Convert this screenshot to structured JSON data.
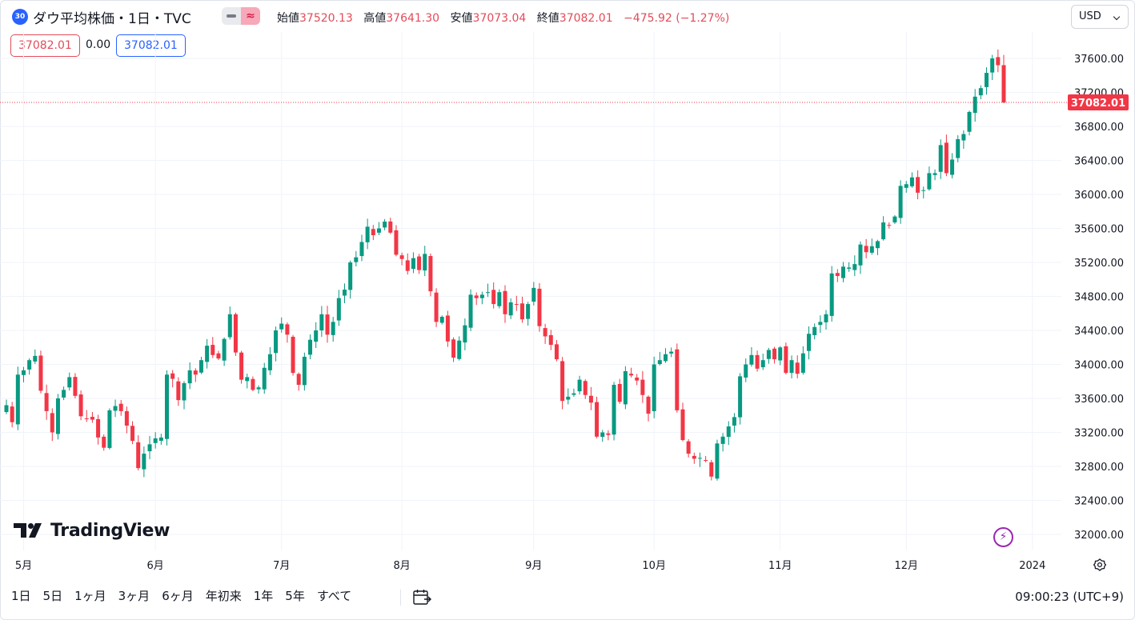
{
  "header": {
    "badge": "30",
    "title": "ダウ平均株価・1日・TVC",
    "ohlc": [
      {
        "k": "始値",
        "v": "37520.13"
      },
      {
        "k": "高値",
        "v": "37641.30"
      },
      {
        "k": "安値",
        "v": "37073.04"
      },
      {
        "k": "終値",
        "v": "37082.01"
      }
    ],
    "change": "−475.92 (−1.27%)",
    "currency": "USD",
    "compare_icon": "≈",
    "pill_sell": "37082.01",
    "pill_spread": "0.00",
    "pill_buy": "37082.01"
  },
  "footer": {
    "logo_text": "TradingView",
    "ranges": [
      "1日",
      "5日",
      "1ヶ月",
      "3ヶ月",
      "6ヶ月",
      "年初来",
      "1年",
      "5年",
      "すべて"
    ],
    "clock": "09:00:23 (UTC+9)",
    "icons": [
      "calendar-icon",
      "lightning-icon",
      "gear-icon"
    ]
  },
  "chart_data": {
    "type": "candlestick",
    "up_color": "#089981",
    "down_color": "#f23645",
    "ylim": [
      31800,
      37800
    ],
    "y_ticks": [
      32000,
      32400,
      32800,
      33200,
      33600,
      34000,
      34400,
      34800,
      35200,
      35600,
      36000,
      36400,
      36800,
      37200,
      37600
    ],
    "y_tick_labels": [
      "32000.00",
      "32400.00",
      "32800.00",
      "33200.00",
      "33600.00",
      "34000.00",
      "34400.00",
      "34800.00",
      "35200.00",
      "35600.00",
      "36000.00",
      "36400.00",
      "36800.00",
      "37200.00",
      "37600.00"
    ],
    "x_ticks": [
      {
        "label": "5月",
        "date": "2023-05-01"
      },
      {
        "label": "6月",
        "date": "2023-06-01"
      },
      {
        "label": "7月",
        "date": "2023-07-03"
      },
      {
        "label": "8月",
        "date": "2023-08-01"
      },
      {
        "label": "9月",
        "date": "2023-09-01"
      },
      {
        "label": "10月",
        "date": "2023-10-02"
      },
      {
        "label": "11月",
        "date": "2023-11-01"
      },
      {
        "label": "12月",
        "date": "2023-12-01"
      },
      {
        "label": "2024",
        "date": "2024-01-02"
      }
    ],
    "last_price": 37082.01,
    "last_price_label": "37082.01",
    "segments": [
      {
        "start": "2023-04-26",
        "closes": [
          33520,
          33320,
          33880,
          33930,
          34050,
          34100,
          33690,
          33450,
          33200,
          33600,
          33700,
          33850,
          33630,
          33390,
          33360,
          33350,
          33140,
          33020,
          33460,
          33510,
          33450,
          33280,
          33100,
          32780,
          32950,
          33060,
          33130,
          33140,
          33880,
          33830,
          33580,
          33780,
          33930,
          33880,
          34050,
          34220,
          34110,
          34070,
          34300,
          34590,
          34140,
          33820,
          33850,
          33700,
          33730,
          33960,
          34120,
          34400,
          34480,
          34350,
          33900,
          33760,
          34090,
          34290,
          34400,
          34590,
          34350,
          34500,
          34780,
          34880,
          35200,
          35260,
          35440,
          35620,
          35520,
          35600,
          35680,
          35550,
          35290,
          35240,
          35100,
          35250,
          35110,
          35300,
          34860,
          34500,
          34560,
          34270,
          34080,
          34280,
          34460,
          34820,
          34780,
          34820,
          34850,
          34710,
          34850,
          34590,
          34730,
          34700,
          34530,
          34710,
          34900,
          34450,
          34330,
          34230,
          34060,
          33570,
          33620,
          33660,
          33820,
          33640,
          33550,
          33150,
          33200,
          33170,
          33760,
          33560,
          33920,
          33870,
          33810,
          33640,
          33420,
          34000,
          34050,
          34120,
          34150,
          33460,
          33110,
          32950,
          32890,
          32900,
          32870,
          32680,
          33070,
          33150,
          33270,
          33380,
          33860,
          34000,
          34110,
          33950,
          34050,
          34170,
          34060,
          34200,
          33900,
          34050,
          33890,
          34130,
          34360,
          34440,
          34500,
          34590,
          35070,
          35040,
          35150,
          35140,
          35180,
          35410,
          35320,
          35390,
          35450,
          35670,
          35640,
          35740,
          36100,
          36120,
          36200,
          36020,
          36050,
          36250,
          36250,
          36580,
          36250,
          36410,
          36650,
          36710,
          36970,
          37150,
          37250,
          37430,
          37600,
          37520,
          37082
        ]
      }
    ]
  }
}
